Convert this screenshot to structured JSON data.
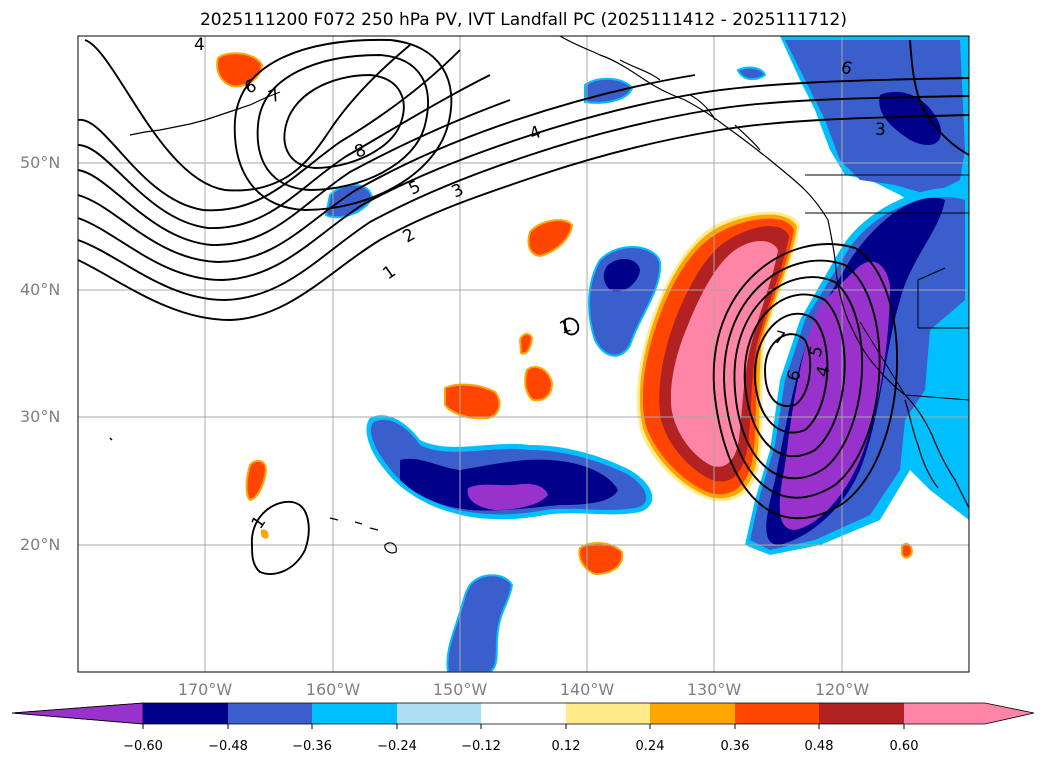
{
  "title": "2025111200 F072 250 hPa PV, IVT Landfall PC (2025111412 - 2025111712)",
  "lat_labels": [
    "50°N",
    "40°N",
    "30°N",
    "20°N"
  ],
  "lon_labels": [
    "170°W",
    "160°W",
    "150°W",
    "140°W",
    "130°W",
    "120°W"
  ],
  "colorbar": {
    "ticks": [
      "−0.60",
      "−0.48",
      "−0.36",
      "−0.24",
      "−0.12",
      "0.12",
      "0.24",
      "0.36",
      "0.48",
      "0.60"
    ],
    "colors": [
      "#9932CC",
      "#00008B",
      "#3A5FCD",
      "#00BFFF",
      "#ADDFF5",
      "#FFFFFF",
      "#FFEB8A",
      "#FFA500",
      "#FF4500",
      "#B22222",
      "#FF85A6"
    ]
  },
  "contour_labels": [
    "4",
    "6",
    "7",
    "8",
    "5",
    "4",
    "3",
    "2",
    "1",
    "6",
    "3",
    "7",
    "6",
    "5",
    "4",
    "1",
    "1"
  ],
  "map_extent": {
    "lon": [
      -180,
      -110
    ],
    "lat": [
      10,
      60
    ]
  }
}
